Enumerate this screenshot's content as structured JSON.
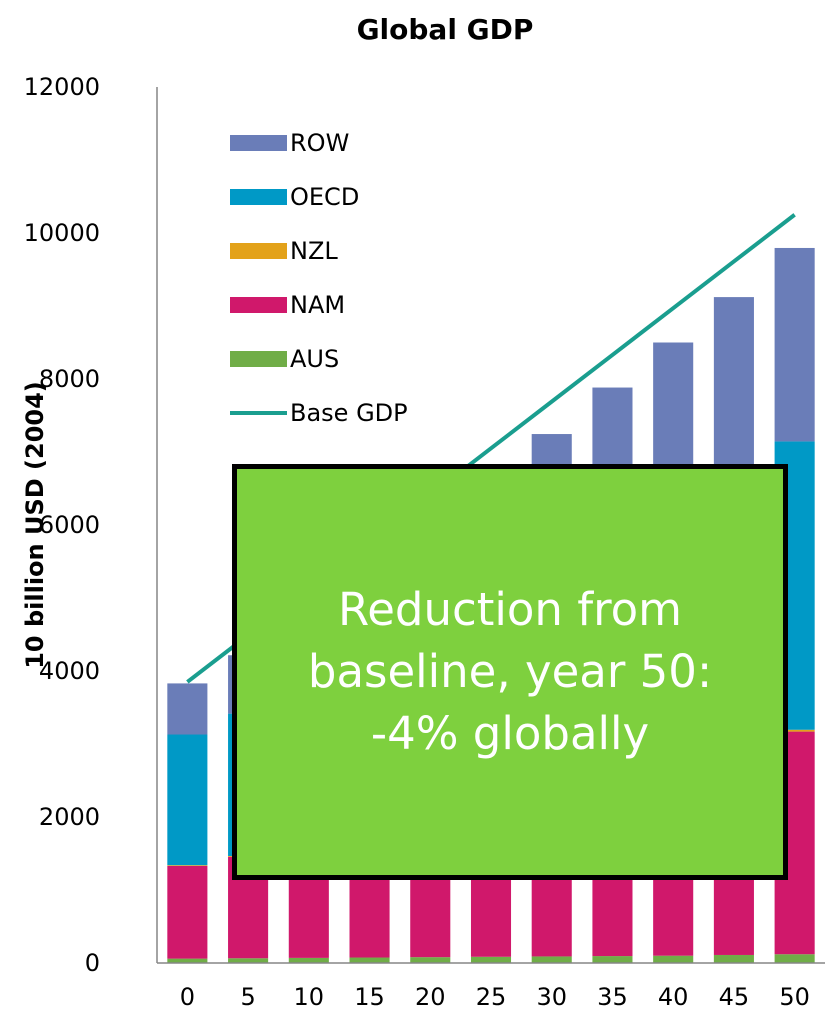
{
  "chart_data": {
    "type": "bar",
    "stacked": true,
    "title": "Global GDP",
    "ylabel": "10 billion USD (2004)",
    "xlabel": "",
    "ylim": [
      0,
      12000
    ],
    "yticks": [
      "0",
      "2000",
      "4000",
      "6000",
      "8000",
      "10000",
      "12000"
    ],
    "categories": [
      "0",
      "5",
      "10",
      "15",
      "20",
      "25",
      "30",
      "35",
      "40",
      "45",
      "50"
    ],
    "series": [
      {
        "name": "AUS",
        "color": "#70ad47",
        "values": [
          60,
          65,
          70,
          75,
          80,
          85,
          90,
          95,
          100,
          110,
          120
        ]
      },
      {
        "name": "NAM",
        "color": "#d0186b",
        "values": [
          1270,
          1390,
          1510,
          1630,
          1750,
          1870,
          2000,
          2230,
          2460,
          2730,
          3050
        ]
      },
      {
        "name": "NZL",
        "color": "#e3a21a",
        "values": [
          10,
          11,
          12,
          13,
          14,
          15,
          16,
          18,
          20,
          22,
          25
        ]
      },
      {
        "name": "OECD",
        "color": "#0099c6",
        "values": [
          1790,
          1950,
          2110,
          2270,
          2430,
          2590,
          2760,
          3100,
          3430,
          3550,
          3950
        ]
      },
      {
        "name": "ROW",
        "color": "#6a7db8",
        "values": [
          700,
          800,
          900,
          1000,
          1100,
          1200,
          2380,
          2440,
          2490,
          2710,
          2650
        ]
      }
    ],
    "line": {
      "name": "Base GDP",
      "color": "#1a9e8f",
      "values": [
        3850,
        4490,
        5130,
        5770,
        6410,
        7050,
        7690,
        8330,
        8970,
        9610,
        10250
      ]
    },
    "legend": {
      "position": "top-left",
      "entries": [
        "ROW",
        "OECD",
        "NZL",
        "NAM",
        "AUS",
        "Base GDP"
      ]
    }
  },
  "callout": {
    "lines": [
      "Reduction from",
      "baseline, year 50:",
      "-4% globally"
    ],
    "background": "#7ed03e"
  }
}
